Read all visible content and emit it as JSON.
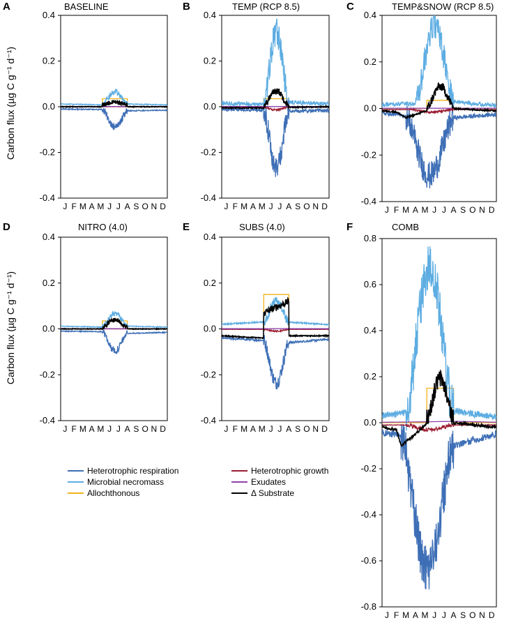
{
  "y_axis_label": "Carbon flux (µg C g⁻¹ d⁻¹)",
  "legend": [
    {
      "key": "hr",
      "label": "Heterotrophic respiration",
      "color": "#3E6FB6"
    },
    {
      "key": "nec",
      "label": "Microbial necromass",
      "color": "#5DADE2"
    },
    {
      "key": "allo",
      "label": "Allochthonous",
      "color": "#F2B21B"
    },
    {
      "key": "growth",
      "label": "Heterotrophic growth",
      "color": "#9B1B30"
    },
    {
      "key": "exu",
      "label": "Exudates",
      "color": "#8E44AD"
    },
    {
      "key": "dsub",
      "label": "Δ Substrate",
      "color": "#000000"
    }
  ],
  "chart_data": [
    {
      "type": "line",
      "letter": "A",
      "title": "BASELINE",
      "ylim": [
        -0.4,
        0.4
      ],
      "yticks": [
        "-0.4",
        "-0.2",
        "0.0",
        "0.2",
        "0.4"
      ],
      "months": [
        "J",
        "F",
        "M",
        "A",
        "M",
        "J",
        "J",
        "A",
        "S",
        "O",
        "N",
        "D"
      ],
      "series": {
        "allo": {
          "name": "Allochthonous",
          "x": [
            0,
            4.7,
            4.7,
            7.5,
            7.5,
            12
          ],
          "y": [
            0,
            0,
            0.035,
            0.035,
            0,
            0
          ]
        },
        "nec": {
          "name": "Microbial necromass",
          "base": [
            [
              0,
              0.012
            ],
            [
              4.7,
              0.008
            ],
            [
              7.5,
              0.012
            ],
            [
              12,
              0.008
            ]
          ],
          "peak": 0.055,
          "start": 4.7,
          "end": 7.5,
          "noise": 0.012
        },
        "hr": {
          "name": "Heterotrophic respiration",
          "base": [
            [
              0,
              -0.01
            ],
            [
              4.7,
              -0.012
            ],
            [
              7.5,
              -0.018
            ],
            [
              12,
              -0.015
            ]
          ],
          "peak": -0.075,
          "start": 4.7,
          "end": 7.5,
          "noise": 0.015
        },
        "dsub": {
          "name": "Δ Substrate",
          "base": [
            [
              0,
              0
            ],
            [
              4.7,
              0
            ],
            [
              12,
              0
            ]
          ],
          "peak": 0.02,
          "start": 4.7,
          "end": 7.5,
          "offset": 0.008,
          "noise": 0.01
        },
        "growth": {
          "name": "Heterotrophic growth",
          "base": [
            [
              0,
              0
            ],
            [
              12,
              0
            ]
          ],
          "noise": 0.002
        },
        "exu": {
          "name": "Exudates",
          "base": [
            [
              0,
              0.001
            ],
            [
              12,
              0.001
            ]
          ],
          "noise": 0
        }
      }
    },
    {
      "type": "line",
      "letter": "B",
      "title": "TEMP (RCP 8.5)",
      "ylim": [
        -0.4,
        0.4
      ],
      "yticks": [
        "-0.4",
        "-0.2",
        "0.0",
        "0.2",
        "0.4"
      ],
      "months": [
        "J",
        "F",
        "M",
        "A",
        "M",
        "J",
        "J",
        "A",
        "S",
        "O",
        "N",
        "D"
      ],
      "series": {
        "allo": {
          "name": "Allochthonous",
          "x": [
            0,
            4.7,
            4.7,
            7.5,
            7.5,
            12
          ],
          "y": [
            0,
            0,
            0.035,
            0.035,
            0,
            0
          ]
        },
        "nec": {
          "name": "Microbial necromass",
          "base": [
            [
              0,
              0.015
            ],
            [
              4.7,
              0.01
            ],
            [
              7.5,
              0.02
            ],
            [
              12,
              0.012
            ]
          ],
          "peak": 0.31,
          "start": 4.7,
          "end": 7.5,
          "noise": 0.06
        },
        "hr": {
          "name": "Heterotrophic respiration",
          "base": [
            [
              0,
              -0.012
            ],
            [
              4.7,
              -0.015
            ],
            [
              7.5,
              -0.02
            ],
            [
              12,
              -0.016
            ]
          ],
          "peak": -0.25,
          "start": 4.7,
          "end": 7.5,
          "noise": 0.05
        },
        "dsub": {
          "name": "Δ Substrate",
          "base": [
            [
              0,
              -0.005
            ],
            [
              4.7,
              -0.005
            ],
            [
              12,
              0
            ]
          ],
          "peak": 0.075,
          "start": 4.7,
          "end": 7.5,
          "offset": 0.01,
          "noise": 0.015
        },
        "growth": {
          "name": "Heterotrophic growth",
          "base": [
            [
              0,
              -0.002
            ],
            [
              12,
              -0.002
            ]
          ],
          "peak": -0.012,
          "start": 4.7,
          "end": 7.5,
          "noise": 0.004
        },
        "exu": {
          "name": "Exudates",
          "base": [
            [
              0,
              0.001
            ],
            [
              12,
              0.001
            ]
          ],
          "noise": 0
        }
      }
    },
    {
      "type": "line",
      "letter": "C",
      "title": "TEMP&SNOW (RCP 8.5)",
      "ylim": [
        -0.4,
        0.4
      ],
      "yticks": [
        "-0.4",
        "-0.2",
        "0.0",
        "0.2",
        "0.4"
      ],
      "months": [
        "J",
        "F",
        "M",
        "A",
        "M",
        "J",
        "J",
        "A",
        "S",
        "O",
        "N",
        "D"
      ],
      "series": {
        "allo": {
          "name": "Allochthonous",
          "x": [
            0,
            4.7,
            4.7,
            7.5,
            7.5,
            12
          ],
          "y": [
            0,
            0,
            0.035,
            0.035,
            0,
            0
          ]
        },
        "nec": {
          "name": "Microbial necromass",
          "base": [
            [
              0,
              0.015
            ],
            [
              2,
              0.02
            ],
            [
              4.7,
              0.02
            ],
            [
              7.5,
              0.03
            ],
            [
              12,
              0.012
            ]
          ],
          "peak": 0.33,
          "start": 3.5,
          "end": 7.5,
          "noise": 0.06
        },
        "hr": {
          "name": "Heterotrophic respiration",
          "base": [
            [
              0,
              -0.02
            ],
            [
              1.5,
              -0.025
            ],
            [
              4.7,
              -0.05
            ],
            [
              7.5,
              -0.04
            ],
            [
              12,
              -0.025
            ]
          ],
          "peak": -0.24,
          "start": 2.5,
          "end": 7.5,
          "noise": 0.06
        },
        "dsub": {
          "name": "Δ Substrate",
          "base": [
            [
              0,
              -0.01
            ],
            [
              1.5,
              -0.015
            ],
            [
              2.5,
              -0.04
            ],
            [
              4.7,
              -0.01
            ],
            [
              7.5,
              0
            ],
            [
              12,
              -0.01
            ]
          ],
          "peak": 0.1,
          "start": 4.7,
          "end": 7.5,
          "offset": 0.01,
          "noise": 0.02
        },
        "growth": {
          "name": "Heterotrophic growth",
          "base": [
            [
              0,
              -0.005
            ],
            [
              12,
              -0.005
            ]
          ],
          "peak": -0.01,
          "start": 3,
          "end": 7.5,
          "noise": 0.005
        },
        "exu": {
          "name": "Exudates",
          "base": [
            [
              0,
              0.001
            ],
            [
              12,
              0.001
            ]
          ],
          "noise": 0
        }
      }
    },
    {
      "type": "line",
      "letter": "D",
      "title": "NITRO (4.0)",
      "ylim": [
        -0.4,
        0.4
      ],
      "yticks": [
        "-0.4",
        "-0.2",
        "0.0",
        "0.2",
        "0.4"
      ],
      "months": [
        "J",
        "F",
        "M",
        "A",
        "M",
        "J",
        "J",
        "A",
        "S",
        "O",
        "N",
        "D"
      ],
      "series": {
        "allo": {
          "name": "Allochthonous",
          "x": [
            0,
            4.7,
            4.7,
            7.5,
            7.5,
            12
          ],
          "y": [
            0,
            0,
            0.035,
            0.035,
            0,
            0
          ]
        },
        "nec": {
          "name": "Microbial necromass",
          "base": [
            [
              0,
              0.012
            ],
            [
              4.7,
              0.008
            ],
            [
              7.5,
              0.012
            ],
            [
              12,
              0.008
            ]
          ],
          "peak": 0.058,
          "start": 4.7,
          "end": 7.5,
          "noise": 0.012
        },
        "hr": {
          "name": "Heterotrophic respiration",
          "base": [
            [
              0,
              -0.01
            ],
            [
              4.7,
              -0.012
            ],
            [
              7.5,
              -0.02
            ],
            [
              12,
              -0.015
            ]
          ],
          "peak": -0.08,
          "start": 4.7,
          "end": 7.5,
          "noise": 0.015
        },
        "dsub": {
          "name": "Δ Substrate",
          "base": [
            [
              0,
              0
            ],
            [
              4.7,
              0
            ],
            [
              12,
              0
            ]
          ],
          "peak": 0.04,
          "start": 4.7,
          "end": 7.5,
          "offset": 0.008,
          "noise": 0.01
        },
        "growth": {
          "name": "Heterotrophic growth",
          "base": [
            [
              0,
              0
            ],
            [
              12,
              0
            ]
          ],
          "noise": 0.002
        },
        "exu": {
          "name": "Exudates",
          "base": [
            [
              0,
              0.001
            ],
            [
              12,
              0.001
            ]
          ],
          "noise": 0
        }
      }
    },
    {
      "type": "line",
      "letter": "E",
      "title": "SUBS (4.0)",
      "ylim": [
        -0.4,
        0.4
      ],
      "yticks": [
        "-0.4",
        "-0.2",
        "0.0",
        "0.2",
        "0.4"
      ],
      "months": [
        "J",
        "F",
        "M",
        "A",
        "M",
        "J",
        "J",
        "A",
        "S",
        "O",
        "N",
        "D"
      ],
      "series": {
        "allo": {
          "name": "Allochthonous",
          "x": [
            0,
            4.7,
            4.7,
            7.5,
            7.5,
            12
          ],
          "y": [
            0,
            0,
            0.15,
            0.15,
            0,
            0
          ]
        },
        "nec": {
          "name": "Microbial necromass",
          "base": [
            [
              0,
              0.02
            ],
            [
              4.7,
              0.03
            ],
            [
              7.5,
              0.03
            ],
            [
              12,
              0.018
            ]
          ],
          "peak": 0.09,
          "start": 4.7,
          "end": 7.5,
          "noise": 0.02
        },
        "hr": {
          "name": "Heterotrophic respiration",
          "base": [
            [
              0,
              -0.04
            ],
            [
              4.7,
              -0.05
            ],
            [
              7.5,
              -0.06
            ],
            [
              12,
              -0.045
            ]
          ],
          "peak": -0.18,
          "start": 4.7,
          "end": 7.5,
          "noise": 0.03
        },
        "dsub": {
          "name": "Δ Substrate",
          "base": [
            [
              0,
              -0.03
            ],
            [
              4.7,
              -0.04
            ],
            [
              7.5,
              -0.03
            ],
            [
              12,
              -0.03
            ]
          ],
          "plateau": [
            0.07,
            0.12
          ],
          "start": 4.7,
          "end": 7.5,
          "noise": 0.015
        },
        "growth": {
          "name": "Heterotrophic growth",
          "base": [
            [
              0,
              -0.002
            ],
            [
              12,
              -0.002
            ]
          ],
          "peak": -0.008,
          "start": 4.7,
          "end": 7.5,
          "noise": 0.003
        },
        "exu": {
          "name": "Exudates",
          "base": [
            [
              0,
              0.001
            ],
            [
              12,
              0.001
            ]
          ],
          "noise": 0
        }
      }
    },
    {
      "type": "line",
      "letter": "F",
      "title": "COMB",
      "ylim": [
        -0.8,
        0.8
      ],
      "yticks": [
        "-0.8",
        "-0.6",
        "-0.4",
        "-0.2",
        "0.0",
        "0.2",
        "0.4",
        "0.6",
        "0.8"
      ],
      "months": [
        "J",
        "F",
        "M",
        "A",
        "M",
        "J",
        "J",
        "A",
        "S",
        "O",
        "N",
        "D"
      ],
      "series": {
        "allo": {
          "name": "Allochthonous",
          "x": [
            0,
            4.7,
            4.7,
            7.5,
            7.5,
            12
          ],
          "y": [
            0,
            0,
            0.15,
            0.15,
            0,
            0
          ]
        },
        "nec": {
          "name": "Microbial necromass",
          "base": [
            [
              0,
              0.03
            ],
            [
              2,
              0.04
            ],
            [
              4.7,
              0.06
            ],
            [
              7.5,
              0.05
            ],
            [
              12,
              0.025
            ]
          ],
          "peak": 0.62,
          "start": 2.5,
          "end": 7.5,
          "noise": 0.1
        },
        "hr": {
          "name": "Heterotrophic respiration",
          "base": [
            [
              0,
              -0.045
            ],
            [
              1.5,
              -0.05
            ],
            [
              4.7,
              -0.12
            ],
            [
              7.5,
              -0.1
            ],
            [
              12,
              -0.05
            ]
          ],
          "peak": -0.52,
          "start": 2.0,
          "end": 7.5,
          "noise": 0.1
        },
        "dsub": {
          "name": "Δ Substrate",
          "base": [
            [
              0,
              -0.02
            ],
            [
              1.5,
              -0.03
            ],
            [
              2,
              -0.1
            ],
            [
              3.5,
              -0.05
            ],
            [
              4.7,
              0
            ],
            [
              7.5,
              0
            ],
            [
              12,
              -0.02
            ]
          ],
          "peak": 0.19,
          "start": 4.7,
          "end": 7.5,
          "offset": 0.02,
          "noise": 0.04
        },
        "growth": {
          "name": "Heterotrophic growth",
          "base": [
            [
              0,
              -0.01
            ],
            [
              12,
              -0.01
            ]
          ],
          "peak": -0.02,
          "start": 2.5,
          "end": 7.5,
          "noise": 0.008
        },
        "exu": {
          "name": "Exudates",
          "base": [
            [
              0,
              0.002
            ],
            [
              4.7,
              0.004
            ],
            [
              7.5,
              0.006
            ],
            [
              12,
              0.002
            ]
          ],
          "noise": 0.001
        }
      }
    }
  ]
}
